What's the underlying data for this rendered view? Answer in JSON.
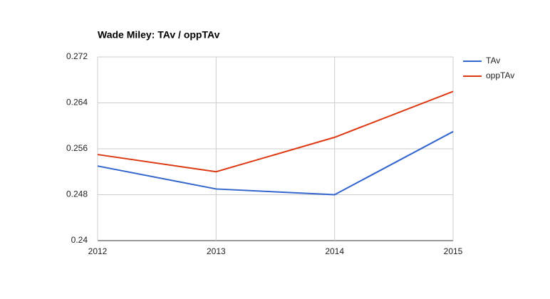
{
  "chart_data": {
    "type": "line",
    "title": "Wade Miley: TAv / oppTAv",
    "x": [
      2012,
      2013,
      2014,
      2015
    ],
    "series": [
      {
        "name": "TAv",
        "color": "#3366cc",
        "values": [
          0.253,
          0.249,
          0.248,
          0.259
        ]
      },
      {
        "name": "oppTAv",
        "color": "#dc3912",
        "values": [
          0.255,
          0.252,
          0.258,
          0.266
        ]
      }
    ],
    "xlim": [
      2012,
      2015
    ],
    "xticks": [
      2012,
      2013,
      2014,
      2015
    ],
    "ylim": [
      0.24,
      0.272
    ],
    "yticks": [
      0.24,
      0.248,
      0.256,
      0.264,
      0.272
    ],
    "grid": true,
    "legend": "right"
  }
}
